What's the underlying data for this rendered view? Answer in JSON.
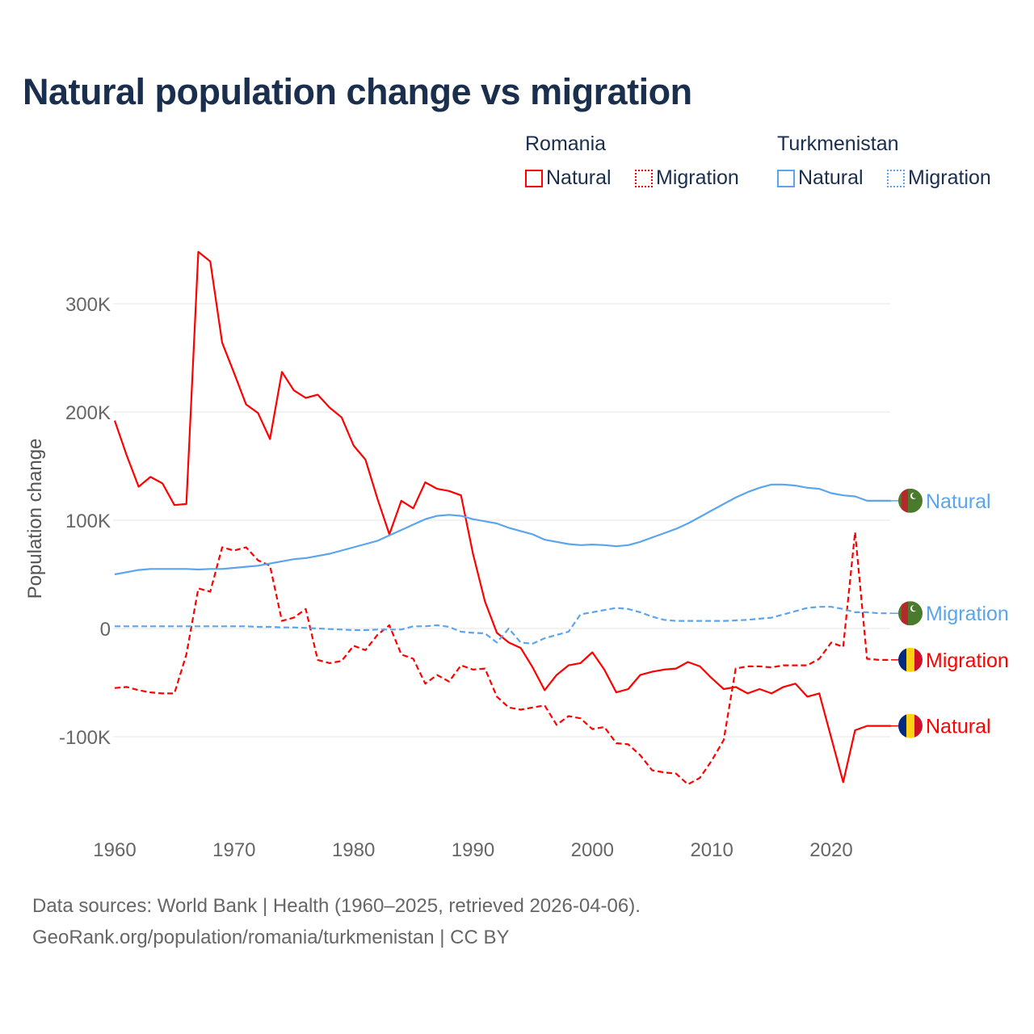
{
  "title": "Natural population change vs migration",
  "legend": {
    "groups": [
      {
        "name": "Romania",
        "color": "#ff0000",
        "items": [
          "Natural",
          "Migration"
        ]
      },
      {
        "name": "Turkmenistan",
        "color": "#5aa5ec",
        "items": [
          "Natural",
          "Migration"
        ]
      }
    ]
  },
  "footer": {
    "line1": "Data sources: World Bank | Health (1960–2025, retrieved 2026-04-06).",
    "line2": "GeoRank.org/population/romania/turkmenistan | CC BY"
  },
  "chart_data": {
    "type": "line",
    "title": "Natural population change vs migration",
    "xlabel": "",
    "ylabel": "Population change",
    "xlim": [
      1960,
      2025
    ],
    "ylim": [
      -190000,
      350000
    ],
    "x_ticks": [
      1960,
      1970,
      1980,
      1990,
      2000,
      2010,
      2020
    ],
    "x_tick_labels": [
      "1960",
      "1970",
      "1980",
      "1990",
      "2000",
      "2010",
      "2020"
    ],
    "y_ticks": [
      300000,
      200000,
      100000,
      0,
      -100000
    ],
    "y_tick_labels": [
      "300K",
      "200K",
      "100K",
      "0",
      "-100K"
    ],
    "grid": true,
    "legend_position": "top-right",
    "x_start": 1960,
    "series": [
      {
        "name": "Romania Natural",
        "end_label": "Natural",
        "country": "Romania",
        "color": "#ff0000",
        "dash": false,
        "values": [
          192,
          160,
          131,
          140,
          134,
          114,
          115,
          348,
          339,
          264,
          236,
          207,
          199,
          175,
          237,
          220,
          213,
          216,
          204,
          195,
          169,
          156,
          120,
          87,
          118,
          111,
          135,
          129,
          127,
          123,
          69,
          25,
          -4,
          -13,
          -18,
          -36,
          -57,
          -43,
          -34,
          -32,
          -22,
          -38,
          -59,
          -56,
          -43,
          -40,
          -38,
          -37,
          -31,
          -35,
          -46,
          -56,
          -54,
          -60,
          -56,
          -60,
          -54,
          -51,
          -63,
          -60,
          -101,
          -142,
          -94,
          -90,
          -90
        ]
      },
      {
        "name": "Romania Migration",
        "end_label": "Migration",
        "country": "Romania",
        "color": "#ff0000",
        "dash": true,
        "values": [
          -55,
          -54,
          -57,
          -59,
          -60,
          -60,
          -24,
          37,
          34,
          75,
          72,
          75,
          63,
          58,
          7,
          10,
          18,
          -29,
          -32,
          -30,
          -16,
          -20,
          -6,
          3,
          -24,
          -28,
          -51,
          -43,
          -49,
          -34,
          -38,
          -37,
          -63,
          -73,
          -75,
          -73,
          -71,
          -89,
          -81,
          -83,
          -93,
          -91,
          -106,
          -107,
          -117,
          -131,
          -133,
          -134,
          -144,
          -138,
          -122,
          -103,
          -37,
          -35,
          -35,
          -36,
          -34,
          -34,
          -34,
          -28,
          -13,
          -17,
          89,
          -28,
          -29
        ]
      },
      {
        "name": "Turkmenistan Natural",
        "end_label": "Natural",
        "country": "Turkmenistan",
        "color": "#5aa5ec",
        "dash": false,
        "values": [
          50,
          52,
          54,
          55,
          55,
          55,
          55,
          54.5,
          55,
          55,
          56,
          57,
          58,
          60,
          62,
          64,
          65,
          67,
          69,
          72,
          75,
          78,
          81,
          86,
          91,
          96,
          101,
          104,
          105,
          104,
          101,
          99,
          97,
          93,
          90,
          87,
          82,
          80,
          78,
          77,
          77.5,
          77,
          76,
          77,
          80,
          84,
          88,
          92,
          97,
          103,
          109,
          115,
          121,
          126,
          130,
          133,
          133,
          132,
          130,
          129,
          125,
          123,
          122,
          118,
          118
        ]
      },
      {
        "name": "Turkmenistan Migration",
        "end_label": "Migration",
        "country": "Turkmenistan",
        "color": "#5aa5ec",
        "dash": true,
        "values": [
          2,
          2,
          2,
          2,
          2,
          2,
          2,
          2,
          2,
          2,
          2,
          2,
          1.5,
          1.5,
          1,
          1,
          0.5,
          0,
          -0.5,
          -1,
          -1.5,
          -1.5,
          -1,
          -1,
          -1,
          2,
          2,
          3,
          1.5,
          -3,
          -4,
          -4.5,
          -13,
          0,
          -13,
          -14,
          -9,
          -6,
          -3,
          13,
          15,
          17,
          19,
          18,
          15,
          11,
          8,
          7,
          7,
          7,
          7,
          7,
          7.5,
          8,
          9,
          10,
          13,
          16,
          19,
          20,
          20,
          18,
          15,
          15,
          14
        ]
      }
    ],
    "value_unit": "thousands"
  }
}
